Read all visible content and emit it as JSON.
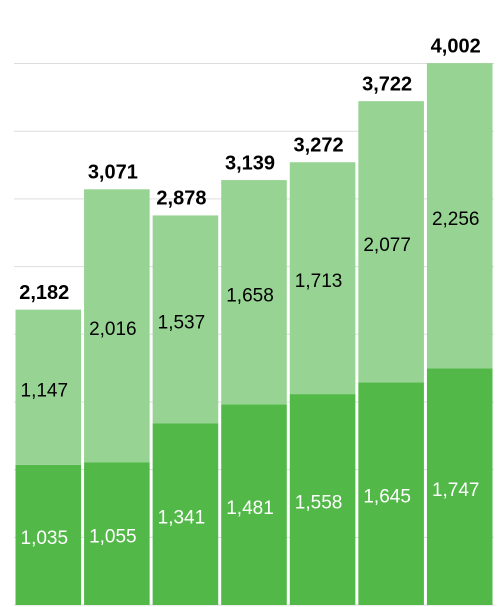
{
  "chart_data": {
    "type": "stacked_bar",
    "series": [
      {
        "name": null,
        "color": "#52b848",
        "label_color": "#ffffff",
        "values": [
          1035,
          1055,
          1341,
          1481,
          1558,
          1645,
          1747
        ],
        "value_labels": [
          "1,035",
          "1,055",
          "1,341",
          "1,481",
          "1,558",
          "1,645",
          "1,747"
        ]
      },
      {
        "name": null,
        "color": "#97d393",
        "label_color": "#000000",
        "values": [
          1147,
          2016,
          1537,
          1658,
          1713,
          2077,
          2256
        ],
        "value_labels": [
          "1,147",
          "2,016",
          "1,537",
          "1,658",
          "1,713",
          "2,077",
          "2,256"
        ]
      }
    ],
    "totals": [
      2182,
      3071,
      2878,
      3139,
      3272,
      3722,
      4002
    ],
    "total_labels": [
      "2,182",
      "3,071",
      "2,878",
      "3,139",
      "3,272",
      "3,722",
      "4,002"
    ],
    "ylim": [
      0,
      4100
    ],
    "yticks": [
      0,
      500,
      1000,
      1500,
      2000,
      2500,
      3000,
      3500,
      4000
    ],
    "grid": true
  }
}
